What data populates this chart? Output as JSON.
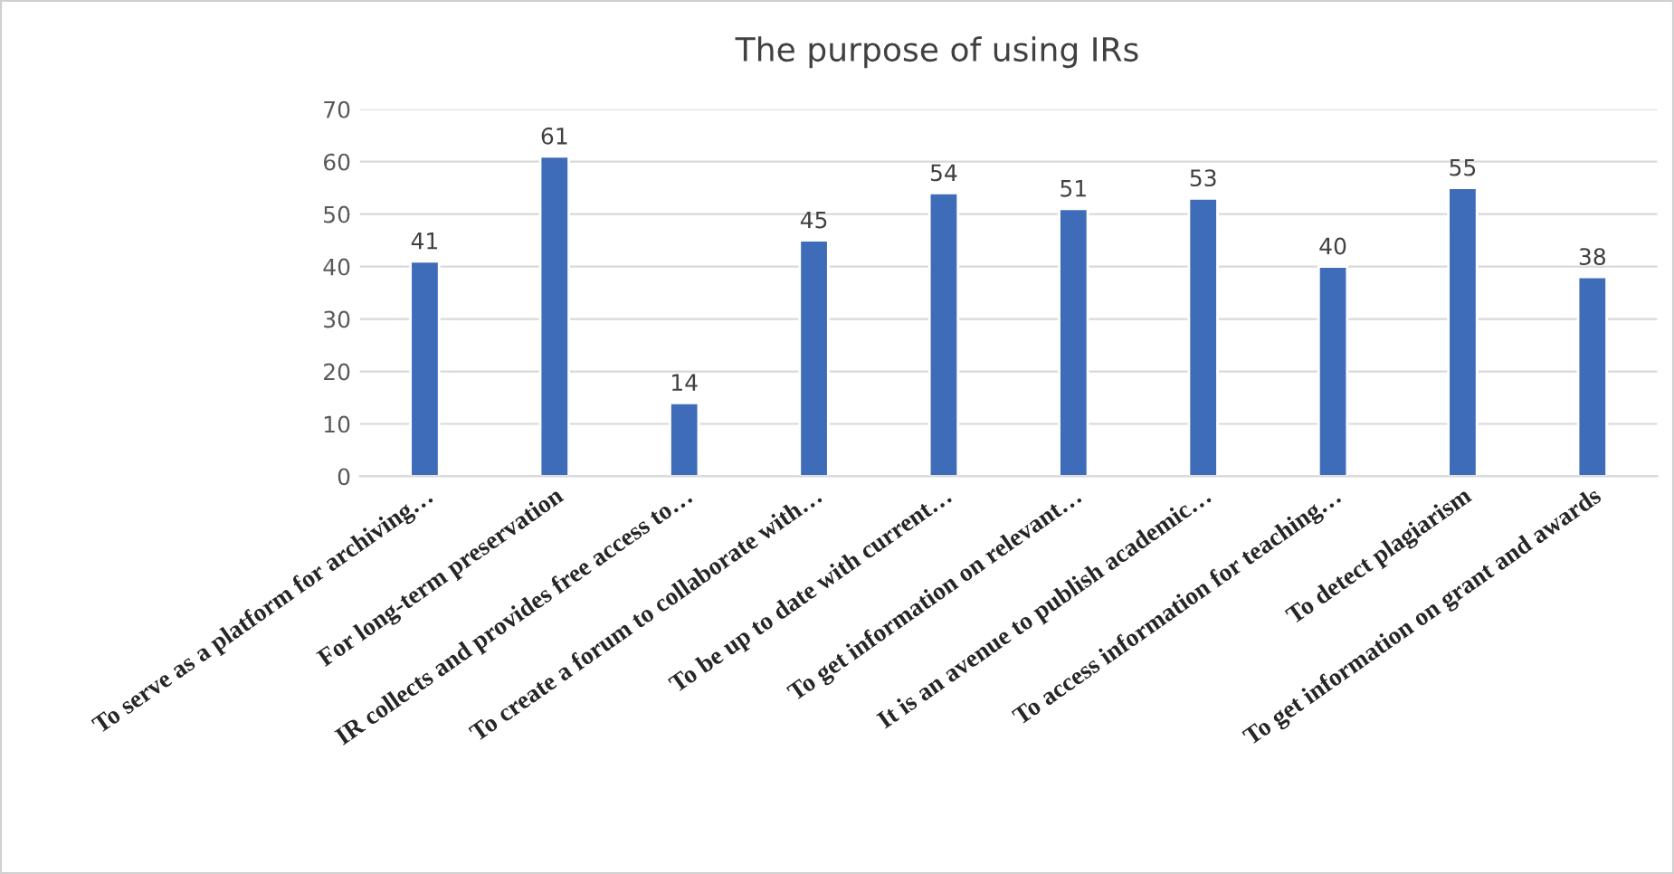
{
  "chart_data": {
    "type": "bar",
    "title": "The purpose of using IRs",
    "categories": [
      "To serve as a platform for archiving…",
      "For long-term preservation",
      "IR collects and provides free access to…",
      "To create a forum to collaborate with…",
      "To be up to date with current…",
      "To get information on relevant…",
      "It is an avenue to publish academic…",
      "To access information for teaching…",
      "To detect plagiarism",
      "To get information on grant and awards"
    ],
    "values": [
      41,
      61,
      14,
      45,
      54,
      51,
      53,
      40,
      55,
      38
    ],
    "color": "#3f6cb8",
    "ylim": [
      0,
      70
    ],
    "yticks": [
      0,
      10,
      20,
      30,
      40,
      50,
      60,
      70
    ],
    "grid": "y",
    "data_labels": true
  }
}
